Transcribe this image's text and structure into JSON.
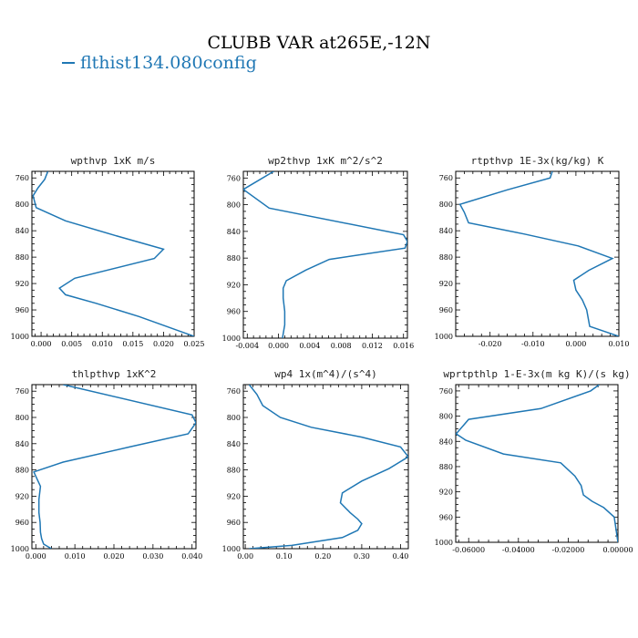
{
  "title": "CLUBB VAR at265E,-12N",
  "legend": [
    {
      "label": "flthist134.080config",
      "color": "#1f77b4"
    }
  ],
  "colors": {
    "series": "#1f77b4",
    "axes": "#000000"
  },
  "chart_data": [
    {
      "type": "line",
      "title": "wpthvp  1xK m/s",
      "xlim": [
        -0.0015,
        0.025
      ],
      "ylim": [
        1000,
        750
      ],
      "xticks": [
        0.0,
        0.005,
        0.01,
        0.015,
        0.02,
        0.025
      ],
      "xtick_labels": [
        "0.000",
        "0.005",
        "0.010",
        "0.015",
        "0.020",
        "0.025"
      ],
      "yticks": [
        760,
        800,
        840,
        880,
        920,
        960,
        1000
      ],
      "series": [
        {
          "x": [
            0.0011,
            0.0006,
            -0.0005,
            -0.0013,
            -0.0008,
            0.004,
            0.012,
            0.02,
            0.0185,
            0.0055,
            0.003,
            0.004,
            0.009,
            0.016,
            0.025
          ],
          "y": [
            750,
            762,
            775,
            787,
            805,
            825,
            847,
            868,
            882,
            912,
            927,
            937,
            950,
            970,
            1000
          ]
        }
      ]
    },
    {
      "type": "line",
      "title": "wp2thvp  1xK m^2/s^2",
      "xlim": [
        -0.0045,
        0.0165
      ],
      "ylim": [
        1000,
        750
      ],
      "xticks": [
        -0.004,
        0.0,
        0.004,
        0.008,
        0.012,
        0.016
      ],
      "xtick_labels": [
        "-0.004",
        "0.000",
        "0.004",
        "0.008",
        "0.012",
        "0.016"
      ],
      "yticks": [
        760,
        800,
        840,
        880,
        920,
        960,
        1000
      ],
      "series": [
        {
          "x": [
            -0.0006,
            -0.0045,
            -0.0012,
            0.016,
            0.0165,
            0.0162,
            0.0065,
            0.0035,
            0.001,
            0.0006,
            0.0006,
            0.0008,
            0.0008,
            0.0005
          ],
          "y": [
            750,
            777,
            805,
            845,
            855,
            865,
            882,
            898,
            914,
            925,
            940,
            960,
            980,
            1000
          ]
        }
      ]
    },
    {
      "type": "line",
      "title": "rtpthvp  1E-3x(kg/kg) K",
      "xlim": [
        -0.028,
        0.01
      ],
      "ylim": [
        1000,
        750
      ],
      "xticks": [
        -0.02,
        -0.01,
        0.0,
        0.01
      ],
      "xtick_labels": [
        "-0.020",
        "-0.010",
        "0.000",
        "0.010"
      ],
      "yticks": [
        760,
        800,
        840,
        880,
        920,
        960,
        1000
      ],
      "series": [
        {
          "x": [
            -0.0055,
            -0.006,
            -0.016,
            -0.027,
            -0.026,
            -0.025,
            -0.012,
            0.0005,
            0.0085,
            0.003,
            -0.0005,
            0.0,
            0.0015,
            0.0025,
            0.0032,
            0.01
          ],
          "y": [
            750,
            760,
            778,
            800,
            812,
            828,
            845,
            863,
            882,
            900,
            915,
            930,
            945,
            960,
            985,
            1000
          ]
        }
      ]
    },
    {
      "type": "line",
      "title": "thlpthvp  1xK^2",
      "xlim": [
        -0.001,
        0.041
      ],
      "ylim": [
        1000,
        750
      ],
      "xticks": [
        0.0,
        0.01,
        0.02,
        0.03,
        0.04
      ],
      "xtick_labels": [
        "0.000",
        "0.010",
        "0.020",
        "0.030",
        "0.040"
      ],
      "yticks": [
        760,
        800,
        840,
        880,
        920,
        960,
        1000
      ],
      "series": [
        {
          "x": [
            0.007,
            0.04,
            0.041,
            0.039,
            0.024,
            0.007,
            -0.0005,
            0.0012,
            0.0008,
            0.0008,
            0.0011,
            0.0012,
            0.0015,
            0.002,
            0.004
          ],
          "y": [
            750,
            796,
            808,
            825,
            845,
            868,
            883,
            905,
            925,
            945,
            960,
            975,
            985,
            993,
            1000
          ]
        }
      ]
    },
    {
      "type": "line",
      "title": "wp4  1x(m^4)/(s^4)",
      "xlim": [
        -0.005,
        0.42
      ],
      "ylim": [
        1000,
        750
      ],
      "xticks": [
        0.0,
        0.1,
        0.2,
        0.3,
        0.4
      ],
      "xtick_labels": [
        "0.00",
        "0.10",
        "0.20",
        "0.30",
        "0.40"
      ],
      "yticks": [
        760,
        800,
        840,
        880,
        920,
        960,
        1000
      ],
      "series": [
        {
          "x": [
            0.01,
            0.03,
            0.045,
            0.09,
            0.17,
            0.3,
            0.4,
            0.42,
            0.37,
            0.3,
            0.25,
            0.245,
            0.27,
            0.29,
            0.3,
            0.29,
            0.25,
            0.12,
            0.01
          ],
          "y": [
            750,
            765,
            782,
            800,
            815,
            830,
            845,
            860,
            878,
            897,
            915,
            930,
            945,
            955,
            962,
            972,
            983,
            995,
            1000
          ]
        }
      ]
    },
    {
      "type": "line",
      "title": "wprtpthlp  1-E-3x(m kg K)/(s kg)",
      "xlim": [
        -0.0652,
        0.0
      ],
      "ylim": [
        1000,
        750
      ],
      "xticks": [
        -0.06,
        -0.04,
        -0.02,
        0.0
      ],
      "xtick_labels": [
        "-0.06000",
        "-0.04000",
        "-0.02000",
        "0.00000"
      ],
      "yticks": [
        760,
        800,
        840,
        880,
        920,
        960,
        1000
      ],
      "series": [
        {
          "x": [
            -0.0075,
            -0.011,
            -0.031,
            -0.06,
            -0.065,
            -0.0612,
            -0.046,
            -0.023,
            -0.0173,
            -0.0148,
            -0.0139,
            -0.0104,
            -0.0057,
            -0.0015,
            0.0
          ],
          "y": [
            750,
            760,
            788,
            805,
            828,
            838,
            860,
            874,
            895,
            910,
            925,
            935,
            945,
            960,
            1000
          ]
        }
      ]
    }
  ]
}
